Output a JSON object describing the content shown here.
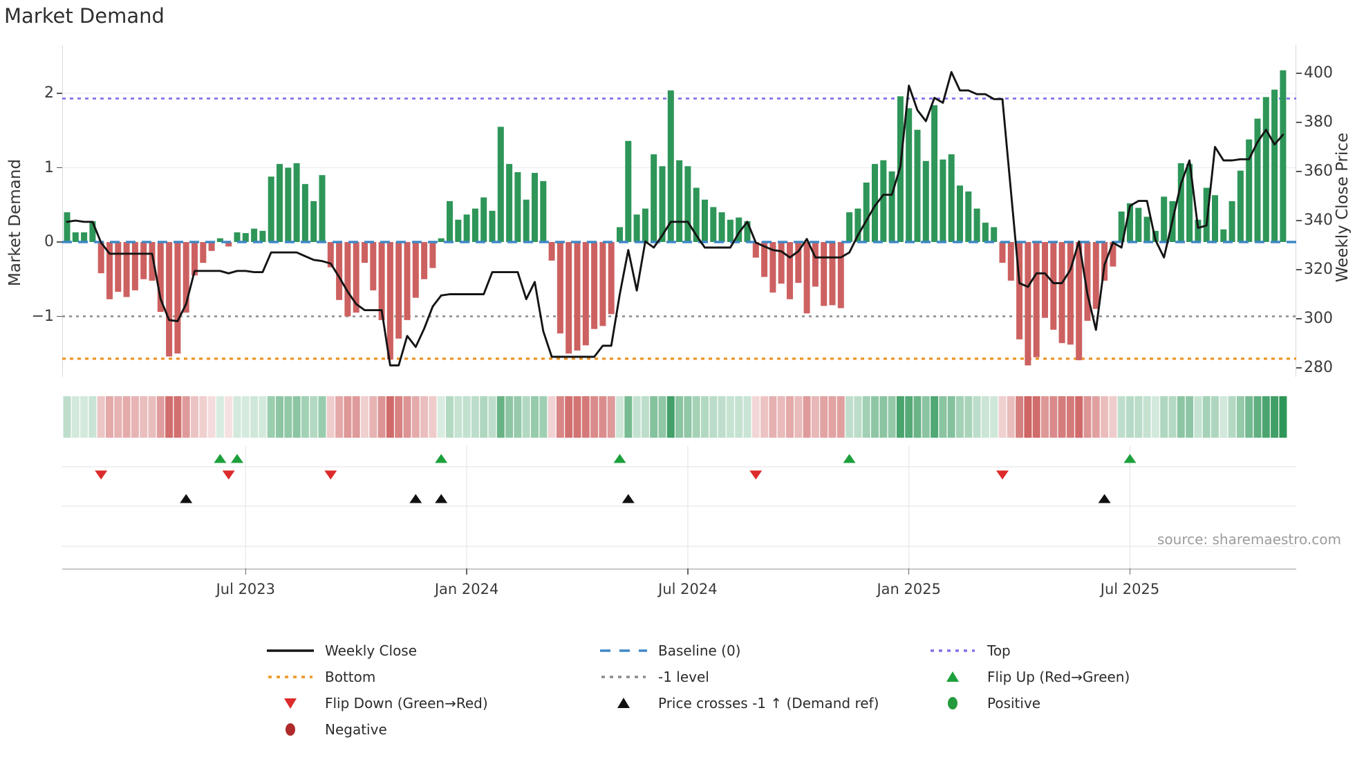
{
  "title": "Market Demand",
  "source_text": "source: sharemaestro.com",
  "axes": {
    "left_label": "Market Demand",
    "right_label": "Weekly Close Price",
    "left_ticks": [
      "2",
      "1",
      "0",
      "−1"
    ],
    "left_tick_values": [
      2,
      1,
      0,
      -1
    ],
    "right_ticks": [
      "400",
      "380",
      "360",
      "340",
      "320",
      "300",
      "280"
    ],
    "right_tick_values": [
      400,
      380,
      360,
      340,
      320,
      300,
      280
    ],
    "x_ticks": [
      "Jul 2023",
      "Jan 2024",
      "Jul 2024",
      "Jan 2025",
      "Jul 2025"
    ]
  },
  "colors": {
    "bar_positive": "#2e9658",
    "bar_negative": "#cd6161",
    "price_line": "#141414",
    "baseline": "#3f87c5",
    "top_line": "#7f72ec",
    "bottom_line": "#ee9522",
    "minus1_line": "#8a8a8a",
    "flip_up": "#1da03c",
    "flip_down": "#dd2b2b",
    "price_cross": "#111111",
    "positive_dot": "#239a3b",
    "negative_dot": "#b02a2a"
  },
  "legend": {
    "items": [
      {
        "label": "Weekly Close",
        "swatch": "line-solid",
        "color_key": "price_line"
      },
      {
        "label": "Bottom",
        "swatch": "dots",
        "color_key": "bottom_line"
      },
      {
        "label": "Flip Down (Green→Red)",
        "swatch": "tri-down",
        "color_key": "flip_down"
      },
      {
        "label": "Negative",
        "swatch": "circle",
        "color_key": "negative_dot"
      },
      {
        "label": "Baseline (0)",
        "swatch": "dashes",
        "color_key": "baseline"
      },
      {
        "label": "-1 level",
        "swatch": "dots",
        "color_key": "minus1_line"
      },
      {
        "label": "Price crosses -1 ↑ (Demand ref)",
        "swatch": "tri-up",
        "color_key": "price_cross"
      },
      {
        "label": "Top",
        "swatch": "dots",
        "color_key": "top_line"
      },
      {
        "label": "Flip Up (Red→Green)",
        "swatch": "tri-up",
        "color_key": "flip_up"
      },
      {
        "label": "Positive",
        "swatch": "circle",
        "color_key": "positive_dot"
      }
    ]
  },
  "chart_data": {
    "type": "combo-bar-line-heatmap",
    "title": "Market Demand",
    "x_unit": "week",
    "n_weeks": 144,
    "x_tick_labels": [
      "Jul 2023",
      "Jan 2024",
      "Jul 2024",
      "Jan 2025",
      "Jul 2025"
    ],
    "x_tick_weeks": [
      21,
      47,
      73,
      99,
      125
    ],
    "left_axis": {
      "label": "Market Demand",
      "ticks": [
        2,
        1,
        0,
        -1
      ],
      "range": [
        -1.81,
        2.65
      ]
    },
    "right_axis": {
      "label": "Weekly Close Price",
      "ticks": [
        400,
        380,
        360,
        340,
        320,
        300,
        280
      ],
      "range": [
        276.3,
        411.5
      ]
    },
    "ref_lines": {
      "baseline": 0,
      "top": 1.93,
      "minus_one": -1,
      "bottom": -1.57
    },
    "series": [
      {
        "name": "Market Demand",
        "type": "bar",
        "values": [
          0.4,
          0.13,
          0.13,
          0.28,
          -0.42,
          -0.77,
          -0.67,
          -0.74,
          -0.65,
          -0.5,
          -0.52,
          -0.94,
          -1.54,
          -1.5,
          -0.95,
          -0.45,
          -0.28,
          -0.12,
          0.05,
          -0.06,
          0.13,
          0.12,
          0.18,
          0.15,
          0.88,
          1.05,
          1.0,
          1.06,
          0.78,
          0.55,
          0.9,
          -0.34,
          -0.78,
          -1.0,
          -0.95,
          -0.28,
          -0.65,
          -1.05,
          -1.58,
          -1.3,
          -1.05,
          -0.75,
          -0.5,
          -0.35,
          0.05,
          0.55,
          0.3,
          0.37,
          0.45,
          0.6,
          0.42,
          1.55,
          1.05,
          0.94,
          0.57,
          0.93,
          0.82,
          -0.25,
          -1.23,
          -1.5,
          -1.46,
          -1.39,
          -1.17,
          -1.13,
          -0.97,
          0.2,
          1.36,
          0.37,
          0.45,
          1.18,
          1.02,
          2.04,
          1.1,
          1.02,
          0.73,
          0.57,
          0.47,
          0.4,
          0.3,
          0.33,
          0.28,
          -0.21,
          -0.47,
          -0.68,
          -0.56,
          -0.77,
          -0.55,
          -0.96,
          -0.6,
          -0.86,
          -0.85,
          -0.89,
          0.4,
          0.45,
          0.8,
          1.05,
          1.1,
          0.95,
          1.96,
          1.8,
          1.51,
          1.09,
          1.84,
          1.11,
          1.18,
          0.76,
          0.68,
          0.45,
          0.26,
          0.2,
          -0.28,
          -0.52,
          -1.31,
          -1.66,
          -1.55,
          -1.02,
          -1.18,
          -1.36,
          -1.38,
          -1.59,
          -1.06,
          -0.9,
          -0.52,
          -0.33,
          0.41,
          0.52,
          0.46,
          0.34,
          0.15,
          0.61,
          0.55,
          1.06,
          1.05,
          0.3,
          0.73,
          0.63,
          0.17,
          0.55,
          0.96,
          1.38,
          1.66,
          1.95,
          2.05,
          2.31
        ]
      },
      {
        "name": "Weekly Close",
        "type": "line",
        "values": [
          339.5,
          340,
          339.5,
          339.5,
          331,
          326.5,
          326.5,
          326.5,
          326.5,
          326.5,
          326.5,
          308,
          299.5,
          299,
          306,
          319.5,
          319.5,
          319.5,
          319.5,
          318.5,
          319.5,
          319.5,
          319,
          319,
          327,
          327,
          327,
          327,
          325.5,
          324,
          323.5,
          322.5,
          317,
          311,
          306,
          303.5,
          303.5,
          303.5,
          281,
          281,
          293,
          288.5,
          296,
          305,
          309.5,
          310,
          310,
          310,
          310,
          310,
          319,
          319,
          319,
          319,
          308,
          315,
          295,
          284.5,
          284.5,
          284.5,
          284.5,
          284.5,
          284.5,
          289,
          289,
          310,
          328,
          311.5,
          331.5,
          329,
          334,
          339.5,
          339.5,
          339.5,
          334,
          329,
          329,
          329,
          329,
          335,
          339.5,
          331,
          329.5,
          328,
          327.5,
          325,
          327.5,
          332.5,
          325,
          325,
          325,
          325,
          327,
          334,
          340,
          346,
          350.5,
          350.5,
          362,
          395,
          385,
          380.5,
          390,
          388,
          400.5,
          393,
          393,
          391.5,
          391.5,
          389.5,
          389.5,
          352,
          314.5,
          313,
          318.5,
          318.5,
          314.5,
          314.5,
          320,
          331.5,
          310,
          295.5,
          322,
          331,
          329,
          346,
          348,
          348,
          332,
          325,
          340,
          355,
          364.5,
          337,
          338,
          370,
          364.5,
          364.5,
          365,
          365,
          372,
          377,
          371,
          375
        ]
      }
    ],
    "markers": {
      "flip_up_weeks": [
        18,
        20,
        44,
        65,
        92,
        125
      ],
      "flip_down_weeks": [
        4,
        19,
        31,
        81,
        110
      ],
      "price_cross_weeks": [
        14,
        41,
        44,
        66,
        122
      ]
    },
    "heatmap": {
      "note": "weekly strip, color = sign of demand, intensity = |demand|"
    }
  }
}
